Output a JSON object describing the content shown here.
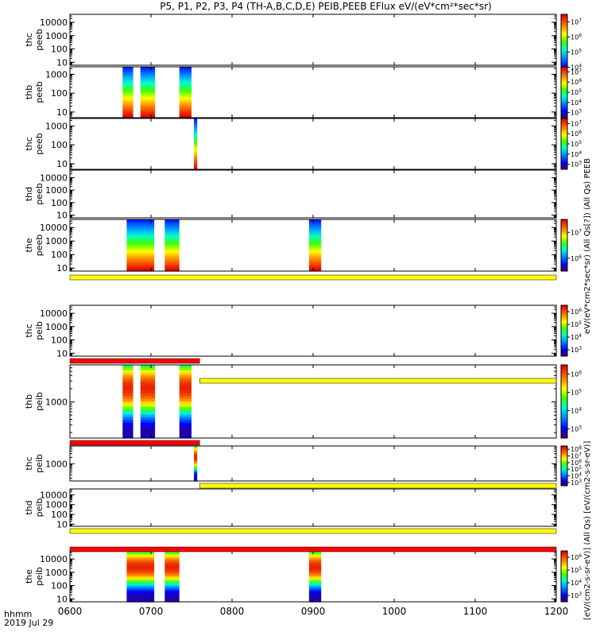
{
  "title": "P5, P1, P2, P3, P4 (TH-A,B,C,D,E) PEIB,PEEB EFlux eV/(eV*cm²*sec*sr)",
  "time_axis": {
    "label": "hhmm",
    "date": "2019 Jul 29",
    "ticks": [
      "0600",
      "0700",
      "0800",
      "0900",
      "1000",
      "1100",
      "1200"
    ],
    "start_hour": 6,
    "end_hour": 12
  },
  "colorbar_label_peeb": "eV/(eV*cm2*sec*sr) (All Qs[?]) (All Qs) PEEB",
  "colorbar_label_peib": "[eV/(cm2-s-sr-eV)] (All Qs) [eV/(cm2-s-sr-eV)]",
  "chart_data": [
    {
      "type": "heatmap",
      "probe": "thc",
      "instrument": "peeb",
      "ylabel": "thc\npeeb",
      "y_ticks": [
        "10",
        "100",
        "1000",
        "10000"
      ],
      "ylim": [
        6,
        40000
      ],
      "log_y": true,
      "intervals": [],
      "colorbar": {
        "ticks": [
          "10^4",
          "10^5",
          "10^6",
          "10^7"
        ]
      }
    },
    {
      "type": "heatmap",
      "probe": "thb",
      "instrument": "peeb",
      "ylabel": "thb\npeeb",
      "y_ticks": [
        "10",
        "100",
        "1000"
      ],
      "ylim": [
        5,
        2500
      ],
      "log_y": true,
      "intervals": [
        [
          6.65,
          6.78
        ],
        [
          6.87,
          7.05
        ],
        [
          7.35,
          7.5
        ]
      ],
      "colorbar": {
        "ticks": [
          "10^3",
          "10^4",
          "10^5",
          "10^6",
          "10^7"
        ]
      }
    },
    {
      "type": "heatmap",
      "probe": "thc",
      "instrument": "peeb",
      "ylabel": "thc\npeeb",
      "y_ticks": [
        "10",
        "100",
        "1000"
      ],
      "ylim": [
        5,
        2500
      ],
      "log_y": true,
      "intervals": [
        [
          7.53,
          7.57
        ]
      ],
      "colorbar": {
        "ticks": [
          "10^3",
          "10^4",
          "10^5",
          "10^6",
          "10^7"
        ]
      }
    },
    {
      "type": "heatmap",
      "probe": "thd",
      "instrument": "peeb",
      "ylabel": "thd\npeeb",
      "y_ticks": [
        "10",
        "100",
        "1000",
        "10000"
      ],
      "ylim": [
        6,
        40000
      ],
      "log_y": true,
      "intervals": [],
      "colorbar": {
        "ticks": []
      }
    },
    {
      "type": "heatmap",
      "probe": "the",
      "instrument": "peeb",
      "ylabel": "the\npeeb",
      "y_ticks": [
        "10",
        "100",
        "1000",
        "10000"
      ],
      "ylim": [
        6,
        40000
      ],
      "log_y": true,
      "intervals": [
        [
          6.7,
          7.04
        ],
        [
          7.17,
          7.35
        ],
        [
          8.95,
          9.1
        ]
      ],
      "colorbar": {
        "ticks": [
          "10^6",
          "10^7"
        ]
      }
    },
    {
      "type": "heatmap",
      "probe": "thc",
      "instrument": "peib",
      "ylabel": "thc\npeib",
      "y_ticks": [
        "10",
        "100",
        "1000",
        "10000"
      ],
      "ylim": [
        6,
        40000
      ],
      "log_y": true,
      "intervals": [],
      "colorbar": {
        "ticks": [
          "10^3",
          "10^4",
          "10^5",
          "10^6"
        ]
      }
    },
    {
      "type": "heatmap",
      "probe": "thb",
      "instrument": "peib",
      "ylabel": "thb\npeib",
      "y_ticks": [
        "1000"
      ],
      "ylim": [
        150,
        7000
      ],
      "log_y": true,
      "intervals": [
        [
          6.65,
          6.78
        ],
        [
          6.87,
          7.05
        ],
        [
          7.35,
          7.5
        ]
      ],
      "colorbar": {
        "ticks": [
          "10^3",
          "10^4",
          "10^5",
          "10^6"
        ]
      }
    },
    {
      "type": "heatmap",
      "probe": "thc",
      "instrument": "peib",
      "ylabel": "thc\npeib",
      "y_ticks": [
        "1000"
      ],
      "ylim": [
        150,
        7000
      ],
      "log_y": true,
      "intervals": [
        [
          7.53,
          7.57
        ]
      ],
      "colorbar": {
        "ticks": [
          "10^3",
          "10^4",
          "10^5",
          "10^6",
          "10^7",
          "10^8"
        ]
      }
    },
    {
      "type": "heatmap",
      "probe": "thd",
      "instrument": "peib",
      "ylabel": "thd\npeib",
      "y_ticks": [
        "10",
        "100",
        "1000",
        "10000"
      ],
      "ylim": [
        6,
        40000
      ],
      "log_y": true,
      "intervals": [],
      "colorbar": {
        "ticks": []
      }
    },
    {
      "type": "heatmap",
      "probe": "the",
      "instrument": "peib",
      "ylabel": "the\npeib",
      "y_ticks": [
        "10",
        "100",
        "1000",
        "10000"
      ],
      "ylim": [
        6,
        40000
      ],
      "log_y": true,
      "intervals": [
        [
          6.7,
          7.04
        ],
        [
          7.17,
          7.35
        ],
        [
          8.95,
          9.1
        ]
      ],
      "colorbar": {
        "ticks": [
          "10^3",
          "10^4",
          "10^5",
          "10^6"
        ]
      }
    }
  ],
  "quality_bars": [
    {
      "color": "#ffff00",
      "segments": [
        [
          6,
          12
        ]
      ]
    },
    {
      "color": "#ff0000",
      "segments": [
        [
          6,
          7.6
        ]
      ]
    },
    {
      "color": "#ffff00",
      "segments": [
        [
          7.6,
          12
        ]
      ]
    },
    {
      "color": "#ff0000",
      "segments": [
        [
          6,
          7.6
        ]
      ]
    },
    {
      "color": "#ffff00",
      "segments": [
        [
          7.6,
          12
        ]
      ]
    },
    {
      "color": "#ffff00",
      "segments": [
        [
          6,
          12
        ]
      ]
    },
    {
      "color": "#ff0000",
      "segments": [
        [
          6,
          12
        ]
      ]
    }
  ]
}
